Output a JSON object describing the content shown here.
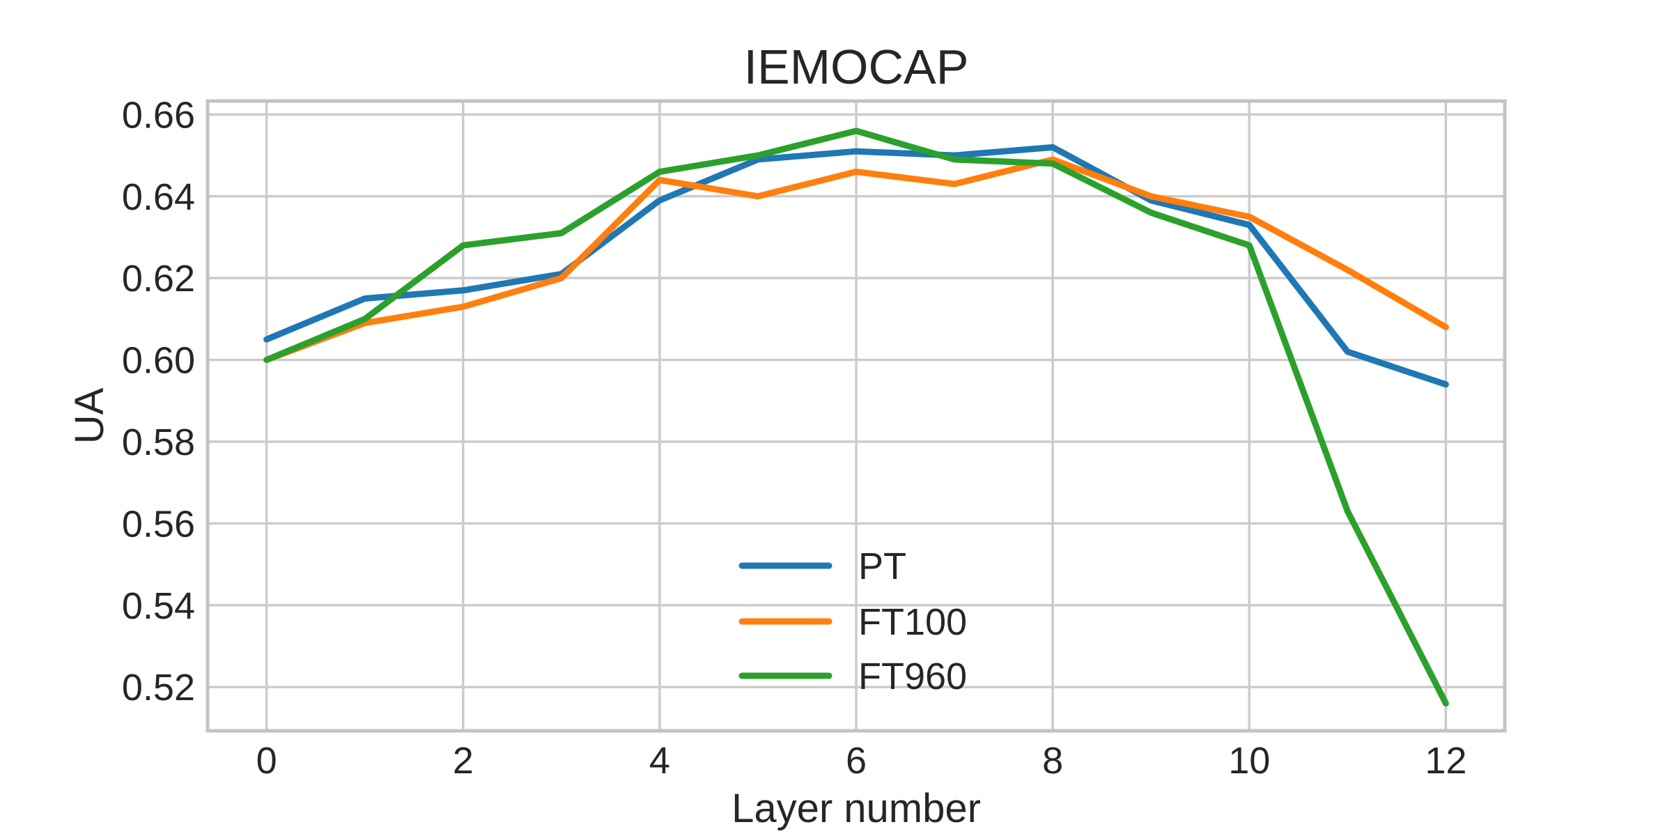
{
  "figure": {
    "background": "#ffffff",
    "grid_color": "#cccccc",
    "spine_color": "#c3c3c3",
    "text_color": "#262626"
  },
  "chart_data": {
    "type": "line",
    "title": "IEMOCAP",
    "xlabel": "Layer number",
    "ylabel": "UA",
    "x": [
      0,
      1,
      2,
      3,
      4,
      5,
      6,
      7,
      8,
      9,
      10,
      11,
      12
    ],
    "series": [
      {
        "name": "PT",
        "color": "#1f77b4",
        "values": [
          0.605,
          0.615,
          0.617,
          0.621,
          0.639,
          0.649,
          0.651,
          0.65,
          0.652,
          0.639,
          0.633,
          0.602,
          0.594
        ]
      },
      {
        "name": "FT100",
        "color": "#ff7f0e",
        "values": [
          0.6,
          0.609,
          0.613,
          0.62,
          0.644,
          0.64,
          0.646,
          0.643,
          0.649,
          0.64,
          0.635,
          0.622,
          0.608
        ]
      },
      {
        "name": "FT960",
        "color": "#2ca02c",
        "values": [
          0.6,
          0.61,
          0.628,
          0.631,
          0.646,
          0.65,
          0.656,
          0.649,
          0.648,
          0.636,
          0.628,
          0.563,
          0.516
        ]
      }
    ],
    "xticks": [
      0,
      2,
      4,
      6,
      8,
      10,
      12
    ],
    "xtick_labels": [
      "0",
      "2",
      "4",
      "6",
      "8",
      "10",
      "12"
    ],
    "yticks": [
      0.52,
      0.54,
      0.56,
      0.58,
      0.6,
      0.62,
      0.64,
      0.66
    ],
    "ytick_labels": [
      "0.52",
      "0.54",
      "0.56",
      "0.58",
      "0.60",
      "0.62",
      "0.64",
      "0.66"
    ],
    "xlim": [
      -0.6,
      12.6
    ],
    "ylim": [
      0.5093,
      0.6633
    ],
    "grid": true,
    "legend_position": "lower-center-inside"
  }
}
